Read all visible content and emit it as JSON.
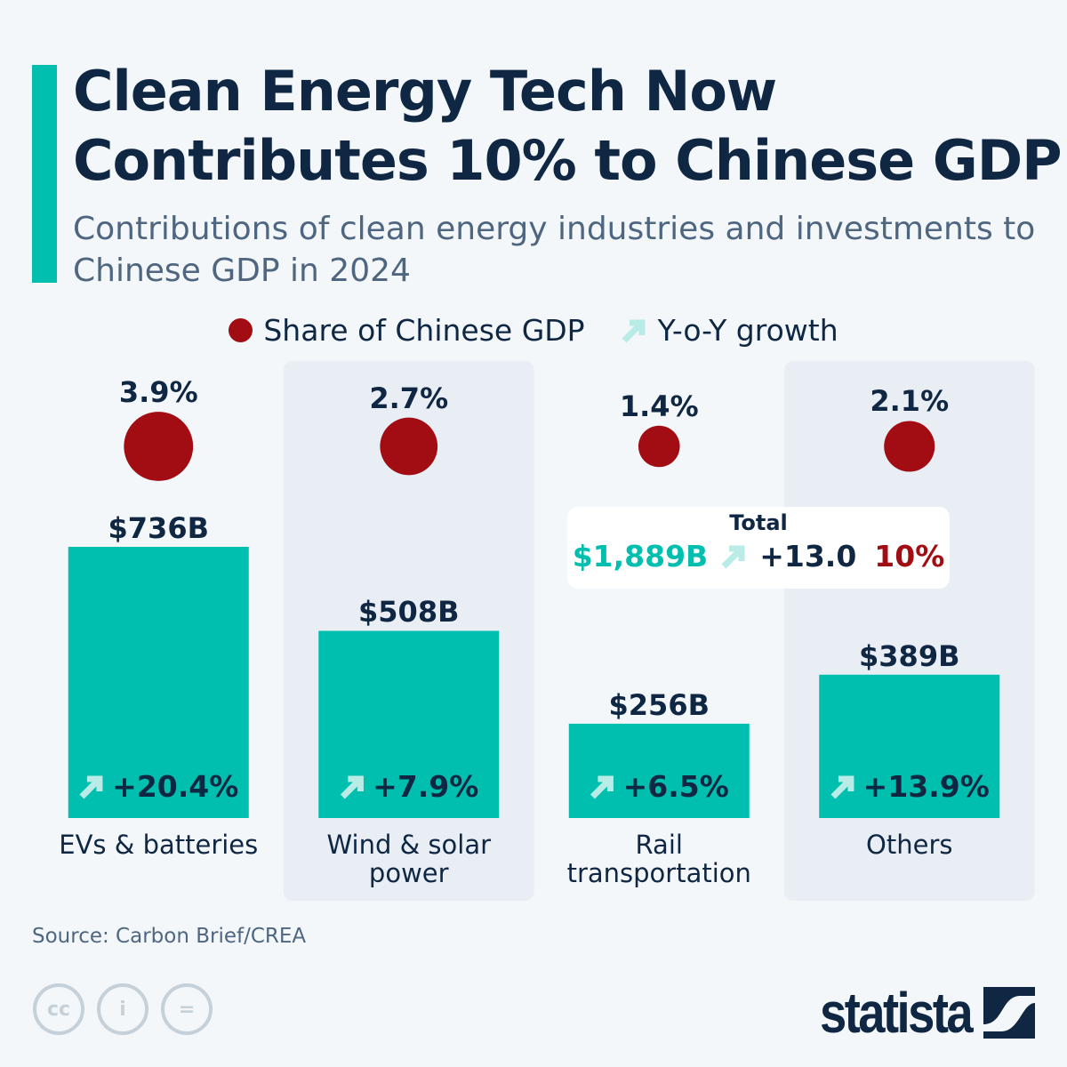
{
  "title_line1": "Clean Energy Tech Now",
  "title_line2": "Contributes 10% to Chinese GDP",
  "subtitle": "Contributions of clean energy industries and investments to Chinese GDP in 2024",
  "legend": {
    "share": "Share of Chinese GDP",
    "growth": "Y-o-Y growth"
  },
  "colors": {
    "bar": "#00bfae",
    "share": "#a20d14",
    "arrow": "#b9ece6",
    "band": "#e9eef5",
    "text": "#0f2743"
  },
  "chart_data": {
    "type": "bar",
    "categories": [
      "EVs & batteries",
      "Wind & solar power",
      "Rail transportation",
      "Others"
    ],
    "category_lines": [
      [
        "EVs & batteries"
      ],
      [
        "Wind & solar",
        "power"
      ],
      [
        "Rail",
        "transportation"
      ],
      [
        "Others"
      ]
    ],
    "values": [
      736,
      508,
      256,
      389
    ],
    "value_labels": [
      "$736B",
      "$508B",
      "$256B",
      "$389B"
    ],
    "unit": "billion USD",
    "gdp_share": [
      3.9,
      2.7,
      1.4,
      2.1
    ],
    "gdp_share_labels": [
      "3.9%",
      "2.7%",
      "1.4%",
      "2.1%"
    ],
    "yoy_growth": [
      20.4,
      7.9,
      6.5,
      13.9
    ],
    "yoy_growth_labels": [
      "+20.4%",
      "+7.9%",
      "+6.5%",
      "+13.9%"
    ]
  },
  "total": {
    "label": "Total",
    "value": "$1,889B",
    "growth": "+13.0",
    "share": "10%"
  },
  "source": "Source: Carbon Brief/CREA",
  "license_icons": [
    "cc-icon",
    "by-icon",
    "nd-icon"
  ],
  "logo": "statista"
}
